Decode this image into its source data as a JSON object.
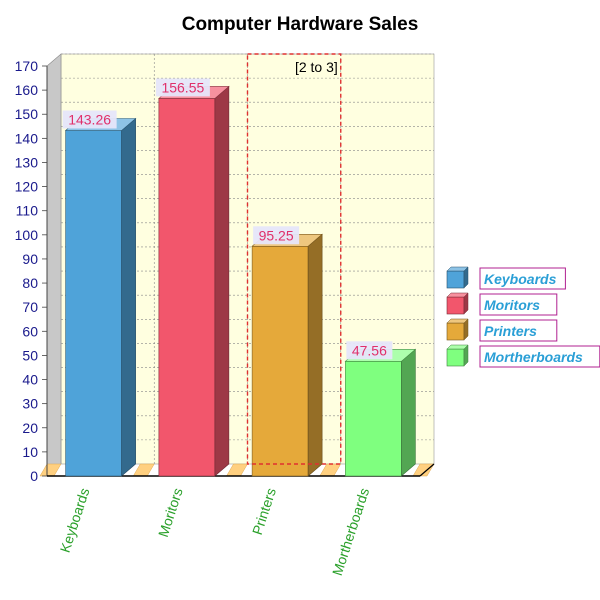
{
  "chart_data": {
    "type": "bar",
    "title": "Computer Hardware Sales",
    "xlabel": "",
    "ylabel": "",
    "categories": [
      "Keyboards",
      "Moritors",
      "Printers",
      "Mortherboards"
    ],
    "values": [
      143.26,
      156.55,
      95.25,
      47.56
    ],
    "data_labels": [
      "143.26",
      "156.55",
      "95.25",
      "47.56"
    ],
    "ylim": [
      0,
      170
    ],
    "yticks": [
      0,
      10,
      20,
      30,
      40,
      50,
      60,
      70,
      80,
      90,
      100,
      110,
      120,
      130,
      140,
      150,
      160,
      170
    ],
    "grid": true,
    "three_d": true,
    "legend": {
      "placement": "right",
      "entries": [
        "Keyboards",
        "Moritors",
        "Printers",
        "Mortherboards"
      ]
    },
    "colors": [
      "#4fa3d9",
      "#f2566c",
      "#e5a93a",
      "#7fff7f"
    ],
    "plot_background": "#ffffe0",
    "annotations": [
      {
        "text": "[2 to 3]",
        "x_range": [
          2,
          3
        ],
        "style": "dashed-red-box"
      }
    ]
  }
}
